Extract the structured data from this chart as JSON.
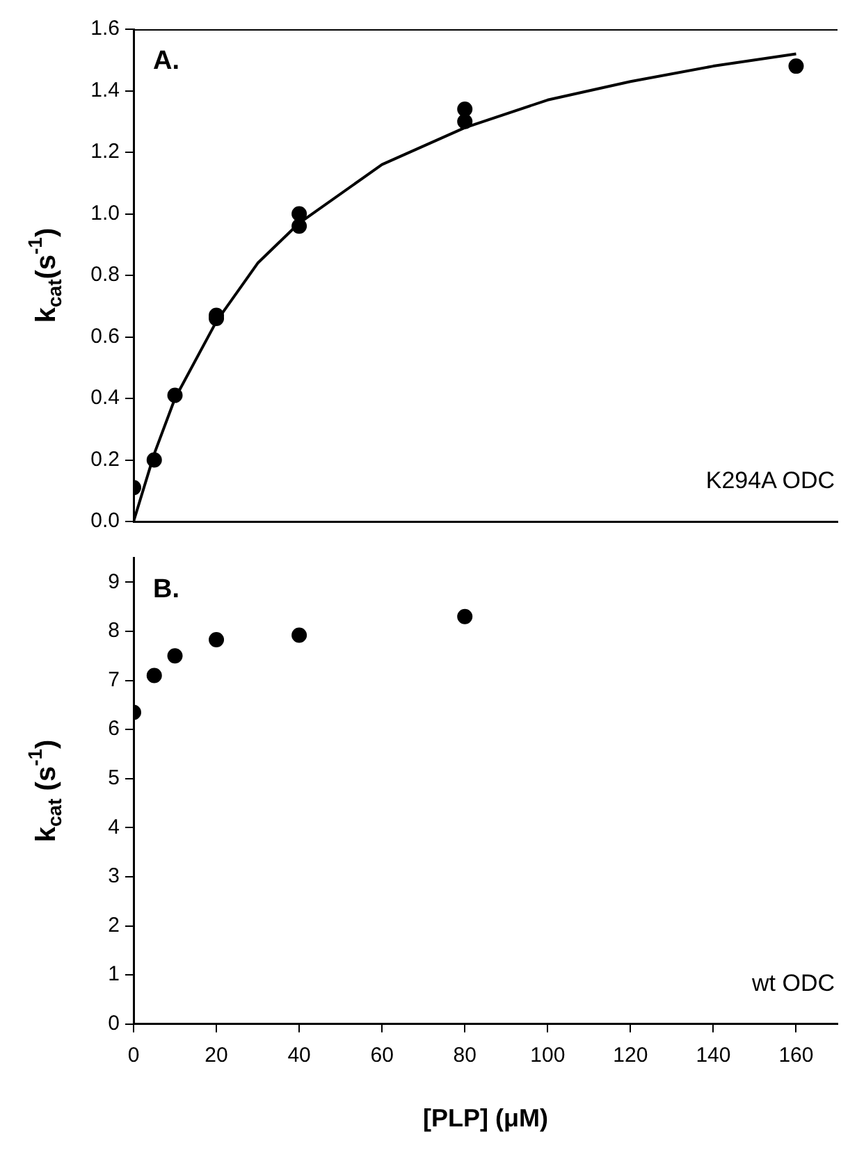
{
  "chart_data": [
    {
      "type": "scatter",
      "ylabel": "k$_{cat}$(s$^{-1}$)",
      "annotations": [
        "A.",
        "K294A ODC"
      ],
      "series": [
        {
          "color": "#000000",
          "marker": "circle",
          "x": [
            0,
            5,
            10,
            20,
            20,
            40,
            40,
            80,
            80,
            160
          ],
          "values": [
            0.11,
            0.2,
            0.41,
            0.66,
            0.67,
            1.0,
            0.96,
            1.34,
            1.3,
            1.48
          ]
        },
        {
          "type": "line",
          "marker": "none",
          "color": "#000000",
          "x": [
            0,
            5,
            10,
            20,
            30,
            40,
            60,
            80,
            100,
            120,
            140,
            160
          ],
          "values": [
            0,
            0.22,
            0.4,
            0.65,
            0.84,
            0.97,
            1.16,
            1.28,
            1.37,
            1.43,
            1.48,
            1.52
          ]
        }
      ],
      "xlim": [
        0,
        170
      ],
      "xticks": [
        0,
        20,
        40,
        60,
        80,
        100,
        120,
        140,
        160
      ],
      "ylim": [
        0,
        1.6
      ],
      "yticks": [
        {
          "value": 0,
          "label": "0.0"
        },
        0.2,
        0.4,
        0.6,
        0.8,
        {
          "value": 1,
          "label": "1.0"
        },
        1.2,
        1.4,
        1.6
      ],
      "tick_labels": "y"
    },
    {
      "type": "scatter",
      "xlabel": "[PLP] (μM)",
      "ylabel": "k$_{cat}$ (s$^{-1}$)",
      "annotations": [
        "B.",
        "wt ODC"
      ],
      "series": [
        {
          "color": "#000000",
          "x": [
            0,
            5,
            10,
            20,
            40,
            80
          ],
          "values": [
            6.35,
            7.1,
            7.5,
            7.83,
            7.92,
            8.3
          ]
        }
      ],
      "xlim": [
        0,
        170
      ],
      "xticks": [
        0,
        20,
        40,
        60,
        80,
        100,
        120,
        140,
        160
      ],
      "ylim": [
        0,
        9.5
      ],
      "yticks": [
        0,
        1,
        2,
        3,
        4,
        5,
        6,
        7,
        8,
        9
      ],
      "marker": "circle"
    }
  ]
}
